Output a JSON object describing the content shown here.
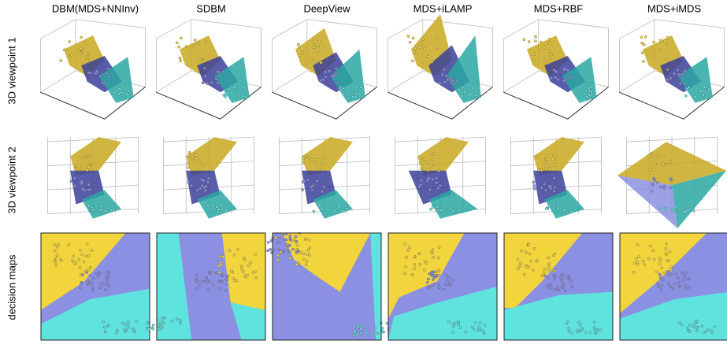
{
  "columns": [
    "DBM(MDS+NNInv)",
    "SDBM",
    "DeepView",
    "MDS+iLAMP",
    "MDS+RBF",
    "MDS+iMDS"
  ],
  "rows": [
    "3D viewpoint 1",
    "3D viewpoint 2",
    "decision maps"
  ]
}
